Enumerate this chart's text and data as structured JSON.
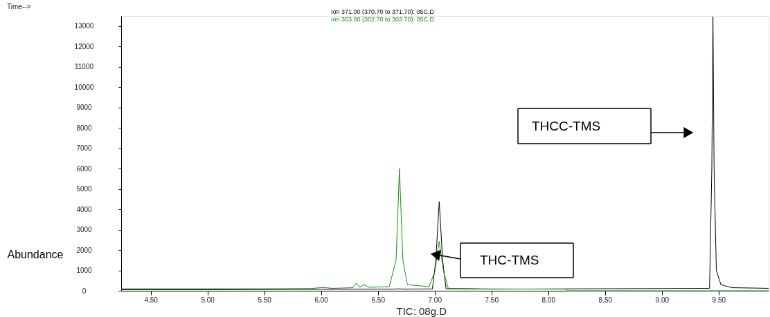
{
  "chart_data": {
    "type": "line",
    "ylabel": "Abundance",
    "legend": "top",
    "xlim": [
      4.24,
      9.94
    ],
    "ylim": [
      0,
      13500
    ],
    "xticks": [
      {
        "value": 4.5,
        "label": "4.50"
      },
      {
        "value": 5.0,
        "label": "5.00"
      },
      {
        "value": 5.5,
        "label": "5.50"
      },
      {
        "value": 6.0,
        "label": "6.00"
      },
      {
        "value": 6.5,
        "label": "6.50"
      },
      {
        "value": 7.0,
        "label": "7.00"
      },
      {
        "value": 7.5,
        "label": "7.50"
      },
      {
        "value": 8.0,
        "label": "8.00"
      },
      {
        "value": 8.5,
        "label": "8.50"
      },
      {
        "value": 9.0,
        "label": "9.00"
      },
      {
        "value": 9.5,
        "label": "9.50"
      }
    ],
    "yticks": [
      0,
      1000,
      2000,
      3000,
      4000,
      5000,
      6000,
      7000,
      8000,
      9000,
      10000,
      11000,
      12000,
      13000
    ],
    "grid": false,
    "line_style": "solid",
    "series": [
      {
        "name": "Ion 371.00 (370.70 to 371.70): 05C.D",
        "color": "#000000",
        "x": [
          4.24,
          5.0,
          5.5,
          6.0,
          6.5,
          6.66,
          6.69,
          6.72,
          6.98,
          7.01,
          7.04,
          7.07,
          7.1,
          7.5,
          8.0,
          8.5,
          9.0,
          9.42,
          9.44,
          9.45,
          9.46,
          9.48,
          9.52,
          9.57,
          9.62,
          9.94
        ],
        "values": [
          50,
          50,
          60,
          70,
          80,
          80,
          100,
          80,
          90,
          1500,
          4380,
          1500,
          100,
          80,
          90,
          100,
          110,
          120,
          6000,
          13450,
          6000,
          1000,
          300,
          220,
          150,
          120
        ]
      },
      {
        "name": "Ion 303.00 (302.70 to 303.70): 05C.D",
        "color": "#1a8c1a",
        "x": [
          4.24,
          5.0,
          5.5,
          5.9,
          6.02,
          6.1,
          6.28,
          6.31,
          6.34,
          6.38,
          6.42,
          6.6,
          6.66,
          6.69,
          6.72,
          6.76,
          6.95,
          7.0,
          7.04,
          7.08,
          7.12,
          7.5,
          8.15,
          8.17,
          9.94
        ],
        "values": [
          100,
          100,
          100,
          110,
          160,
          120,
          150,
          380,
          170,
          300,
          170,
          200,
          1500,
          6000,
          1500,
          300,
          200,
          900,
          2420,
          900,
          120,
          90,
          80,
          0,
          0
        ]
      }
    ],
    "annotations": [
      "Time-->",
      "THC-TMS",
      "THCC-TMS",
      "TIC: 08g.D"
    ]
  }
}
